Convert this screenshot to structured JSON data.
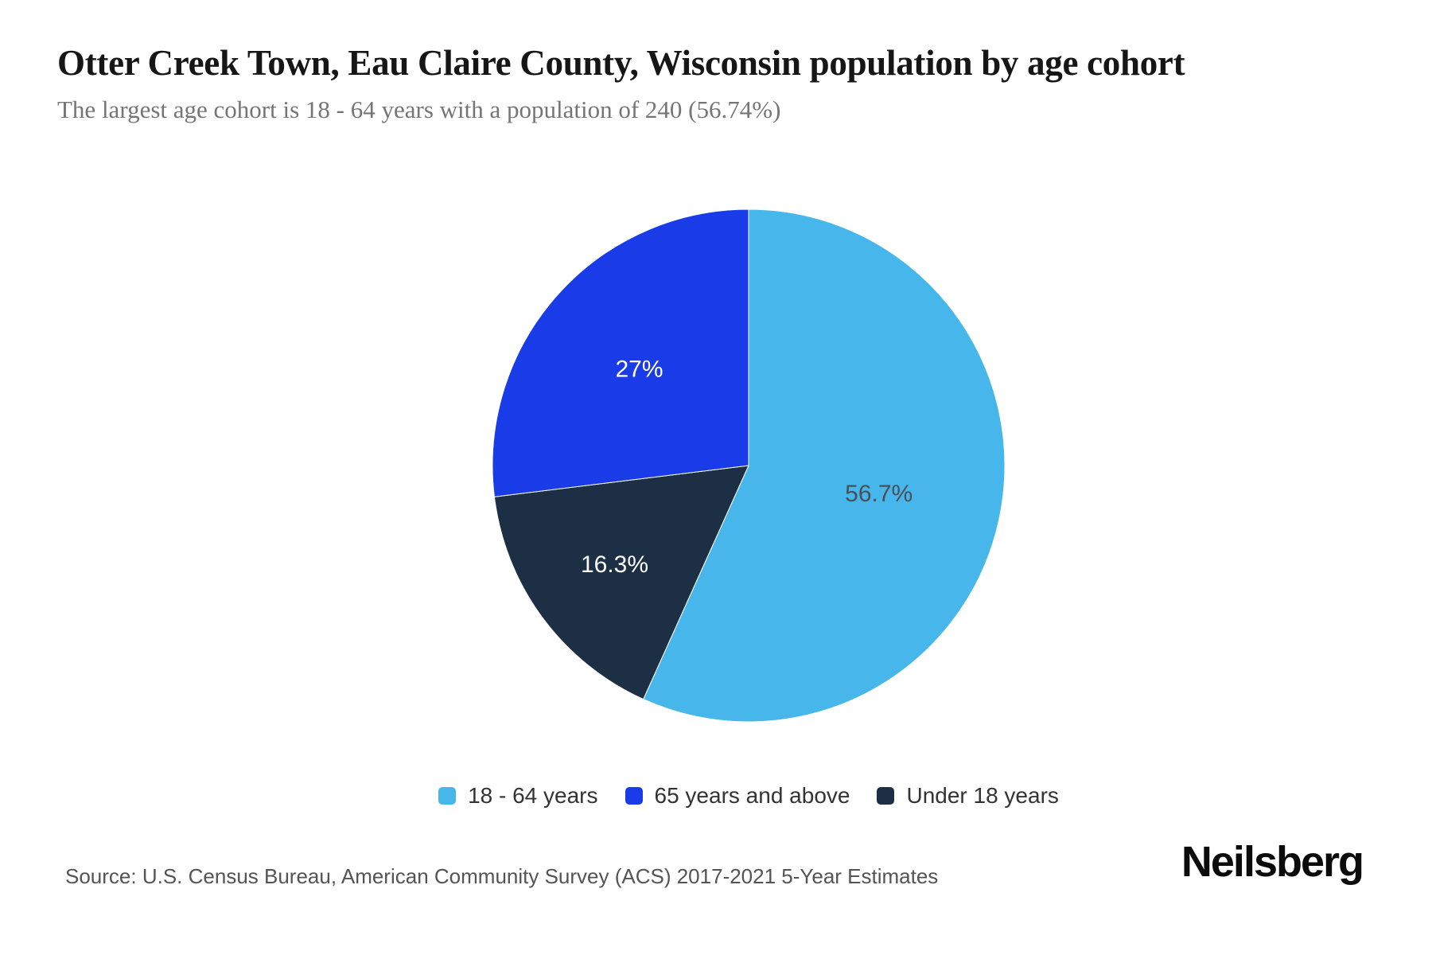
{
  "header": {
    "title": "Otter Creek Town, Eau Claire County, Wisconsin population by age cohort",
    "subtitle": "The largest age cohort is 18 - 64 years with a population of 240 (56.74%)"
  },
  "chart_data": {
    "type": "pie",
    "title": "Otter Creek Town, Eau Claire County, Wisconsin population by age cohort",
    "subtitle": "The largest age cohort is 18 - 64 years with a population of 240 (56.74%)",
    "start_angle_deg": 0,
    "direction": "clockwise",
    "radius_px": 322,
    "label_radius_frac": [
      0.52,
      0.65,
      0.57
    ],
    "slices": [
      {
        "label": "18 - 64 years",
        "value": 56.74,
        "display": "56.7%",
        "color": "#47b6ea",
        "label_color": "#4a5058"
      },
      {
        "label": "Under 18 years",
        "value": 16.31,
        "display": "16.3%",
        "color": "#1d2f45",
        "label_color": "#ffffff"
      },
      {
        "label": "65 years and above",
        "value": 26.95,
        "display": "27%",
        "color": "#1a3ce8",
        "label_color": "#ffffff"
      }
    ],
    "legend_position": "bottom",
    "legend": [
      {
        "label": "18 - 64 years",
        "color": "#47b6ea"
      },
      {
        "label": "65 years and above",
        "color": "#1a3ce8"
      },
      {
        "label": "Under 18 years",
        "color": "#1d2f45"
      }
    ]
  },
  "footer": {
    "source": "Source: U.S. Census Bureau, American Community Survey (ACS) 2017-2021 5-Year Estimates",
    "brand": "Neilsberg"
  }
}
